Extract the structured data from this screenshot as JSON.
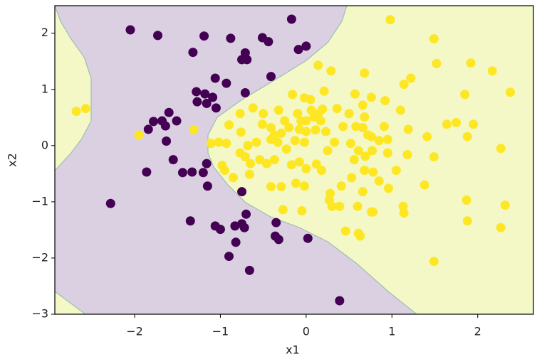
{
  "chart_data": {
    "type": "scatter",
    "x_label": "x1",
    "y_label": "x2",
    "xlim": [
      -2.93,
      2.65
    ],
    "ylim": [
      -3.0,
      2.49
    ],
    "xticks": [
      {
        "value": -2,
        "label": "−2"
      },
      {
        "value": -1,
        "label": "−1"
      },
      0,
      1,
      2
    ],
    "yticks": [
      {
        "value": -3,
        "label": "−3"
      },
      {
        "value": -2,
        "label": "−2"
      },
      {
        "value": -1,
        "label": "−1"
      },
      0,
      1,
      2
    ],
    "series": [
      {
        "color": "#440154",
        "x": [
          -2.05,
          -1.73,
          -1.19,
          -0.88,
          -0.51,
          -0.44,
          -0.17,
          -0.09,
          0.0,
          -1.32,
          -0.71,
          -0.75,
          -0.69,
          -1.06,
          -0.93,
          -0.41,
          -1.28,
          -1.18,
          -1.09,
          -1.27,
          -1.16,
          -0.71,
          -1.05,
          -1.6,
          -1.78,
          -1.68,
          -1.64,
          -1.51,
          -1.84,
          -1.63,
          -1.55,
          -1.44,
          -1.33,
          -1.2,
          -1.16,
          -1.86,
          -1.15,
          -0.75,
          -2.28,
          -0.7,
          -1.35,
          -1.06,
          -1.0,
          -0.83,
          -0.75,
          -0.72,
          -0.82,
          -0.35,
          -0.36,
          -0.32,
          -0.9,
          -0.66,
          0.02,
          0.39
        ],
        "values": [
          2.06,
          1.96,
          1.95,
          1.91,
          1.92,
          1.85,
          2.25,
          1.71,
          1.77,
          1.66,
          1.65,
          1.53,
          1.53,
          1.2,
          1.11,
          1.23,
          0.96,
          0.92,
          0.86,
          0.78,
          0.75,
          0.94,
          0.67,
          0.59,
          0.43,
          0.44,
          0.35,
          0.44,
          0.29,
          0.08,
          -0.25,
          -0.48,
          -0.47,
          -0.48,
          -0.32,
          -0.47,
          -0.72,
          -0.82,
          -1.03,
          -1.22,
          -1.34,
          -1.43,
          -1.49,
          -1.43,
          -1.39,
          -1.46,
          -1.72,
          -1.37,
          -1.61,
          -1.67,
          -1.97,
          -2.22,
          -1.65,
          -2.76
        ]
      },
      {
        "color": "#fde725",
        "x": [
          -2.68,
          -2.57,
          -1.95,
          -1.31,
          -1.11,
          0.98,
          1.49,
          1.52,
          0.14,
          0.29,
          0.68,
          1.22,
          1.14,
          1.92,
          2.17,
          2.38,
          1.85,
          0.21,
          -0.16,
          -0.02,
          0.05,
          0.57,
          0.92,
          0.76,
          0.66,
          1.1,
          0.36,
          0.19,
          0.06,
          0.14,
          -0.62,
          -0.77,
          -0.5,
          -0.32,
          -0.1,
          -0.25,
          -0.06,
          0.0,
          0.09,
          0.17,
          0.5,
          0.68,
          0.43,
          0.66,
          0.91,
          1.19,
          1.64,
          1.75,
          1.95,
          1.41,
          1.88,
          -0.9,
          -0.76,
          -0.51,
          -0.41,
          -0.37,
          -0.29,
          -0.2,
          -0.08,
          0.0,
          0.11,
          0.23,
          0.58,
          0.72,
          0.85,
          0.76,
          0.95,
          -1.02,
          -0.93,
          -0.68,
          -0.58,
          -0.41,
          -0.33,
          -0.23,
          -0.13,
          -0.02,
          0.25,
          0.33,
          0.52,
          0.61,
          0.69,
          0.77,
          0.95,
          1.18,
          1.49,
          2.27,
          -0.77,
          -0.71,
          -0.65,
          -0.54,
          -0.46,
          -0.37,
          -0.17,
          -0.08,
          0.0,
          0.12,
          0.18,
          0.56,
          0.68,
          0.78,
          1.05,
          -0.98,
          -0.95,
          -0.85,
          -0.66,
          -0.41,
          -0.29,
          -0.12,
          -0.02,
          0.53,
          0.85,
          0.96,
          1.38,
          0.28,
          0.41,
          0.66,
          0.27,
          0.3,
          0.39,
          -0.27,
          -0.05,
          0.6,
          0.76,
          0.78,
          1.13,
          1.14,
          1.87,
          2.32,
          0.46,
          0.61,
          0.63,
          1.88,
          2.27,
          1.49
        ],
        "values": [
          0.61,
          0.66,
          0.19,
          0.28,
          0.04,
          2.24,
          1.9,
          1.46,
          1.43,
          1.33,
          1.29,
          1.2,
          1.09,
          1.47,
          1.33,
          0.95,
          0.91,
          0.97,
          0.91,
          0.85,
          0.82,
          0.92,
          0.8,
          0.86,
          0.72,
          0.63,
          0.66,
          0.65,
          0.63,
          0.57,
          0.67,
          0.57,
          0.57,
          0.63,
          0.57,
          0.44,
          0.44,
          0.44,
          0.51,
          0.44,
          0.57,
          0.51,
          0.34,
          0.32,
          0.34,
          0.29,
          0.38,
          0.41,
          0.38,
          0.16,
          0.16,
          0.37,
          0.24,
          0.38,
          0.32,
          0.19,
          0.22,
          0.32,
          0.29,
          0.25,
          0.28,
          0.25,
          0.34,
          0.19,
          0.09,
          0.16,
          0.11,
          0.06,
          0.04,
          0.0,
          0.06,
          0.11,
          0.06,
          -0.06,
          0.09,
          0.06,
          -0.09,
          0.06,
          0.04,
          -0.09,
          -0.19,
          -0.09,
          -0.13,
          -0.16,
          -0.2,
          -0.05,
          -0.13,
          -0.2,
          -0.32,
          -0.25,
          -0.32,
          -0.25,
          -0.34,
          -0.29,
          -0.41,
          -0.33,
          -0.44,
          -0.25,
          -0.44,
          -0.47,
          -0.44,
          -0.35,
          -0.44,
          -0.57,
          -0.51,
          -0.73,
          -0.73,
          -0.67,
          -0.72,
          -0.57,
          -0.63,
          -0.76,
          -0.7,
          -0.85,
          -0.72,
          -0.82,
          -0.97,
          -1.08,
          -1.08,
          -1.14,
          -1.16,
          -1.08,
          -1.18,
          -1.18,
          -1.08,
          -1.2,
          -0.97,
          -1.06,
          -1.52,
          -1.56,
          -1.61,
          -1.34,
          -1.46,
          -2.06
        ]
      }
    ]
  }
}
